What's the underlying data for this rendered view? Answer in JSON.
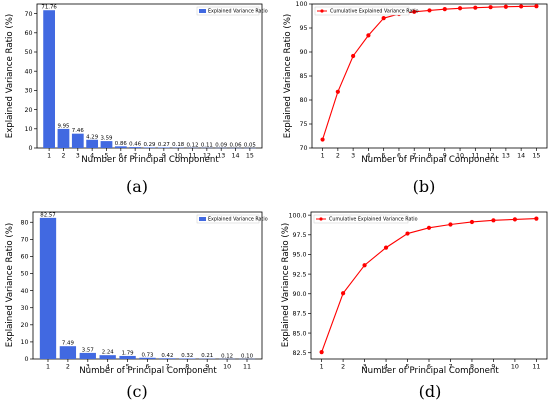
{
  "chart_data": [
    {
      "type": "bar",
      "caption": "(a)",
      "xlabel": "Number of Principal Component",
      "ylabel": "Explained Variance Ratio (%)",
      "legend": "Explained Variance Ratio",
      "legend_position": "top-right",
      "color": "#4169e1",
      "categories": [
        "1",
        "2",
        "3",
        "4",
        "5",
        "6",
        "7",
        "8",
        "9",
        "10",
        "11",
        "12",
        "13",
        "14",
        "15"
      ],
      "values": [
        71.76,
        9.95,
        7.46,
        4.29,
        3.59,
        0.86,
        0.46,
        0.29,
        0.27,
        0.18,
        0.12,
        0.11,
        0.09,
        0.06,
        0.05
      ],
      "labels": [
        "71.76",
        "9.95",
        "7.46",
        "4.29",
        "3.59",
        "0.86",
        "0.46",
        "0.29",
        "0.27",
        "0.18",
        "0.12",
        "0.11",
        "0.09",
        "0.06",
        "0.05"
      ],
      "ylim": [
        0,
        75
      ],
      "yticks": [
        "0",
        "10",
        "20",
        "30",
        "40",
        "50",
        "60",
        "70"
      ]
    },
    {
      "type": "line",
      "caption": "(b)",
      "xlabel": "Number of Principal Component",
      "ylabel": "Explained Variance Ratio (%)",
      "legend": "Cumulative Explained Variance Ratio",
      "legend_position": "top-left",
      "color": "#ff0000",
      "x": [
        1,
        2,
        3,
        4,
        5,
        6,
        7,
        8,
        9,
        10,
        11,
        12,
        13,
        14,
        15
      ],
      "y": [
        71.76,
        81.71,
        89.17,
        93.46,
        97.05,
        97.91,
        98.37,
        98.66,
        98.93,
        99.11,
        99.23,
        99.34,
        99.43,
        99.49,
        99.54
      ],
      "xticks": [
        "1",
        "2",
        "3",
        "4",
        "5",
        "6",
        "7",
        "8",
        "9",
        "10",
        "11",
        "12",
        "13",
        "14",
        "15"
      ],
      "ylim": [
        70,
        100
      ],
      "yticks": [
        "70",
        "75",
        "80",
        "85",
        "90",
        "95",
        "100"
      ]
    },
    {
      "type": "bar",
      "caption": "(c)",
      "xlabel": "Number of Principal Component",
      "ylabel": "Explained Variance Ratio (%)",
      "legend": "Explained Variance Ratio",
      "legend_position": "top-right",
      "color": "#4169e1",
      "categories": [
        "1",
        "2",
        "3",
        "4",
        "5",
        "6",
        "7",
        "8",
        "9",
        "10",
        "11"
      ],
      "values": [
        82.57,
        7.49,
        3.57,
        2.24,
        1.79,
        0.73,
        0.42,
        0.32,
        0.21,
        0.12,
        0.1
      ],
      "labels": [
        "82.57",
        "7.49",
        "3.57",
        "2.24",
        "1.79",
        "0.73",
        "0.42",
        "0.32",
        "0.21",
        "0.12",
        "0.10"
      ],
      "ylim": [
        0,
        86
      ],
      "yticks": [
        "0",
        "10",
        "20",
        "30",
        "40",
        "50",
        "60",
        "70",
        "80"
      ]
    },
    {
      "type": "line",
      "caption": "(d)",
      "xlabel": "Number of Principal Component",
      "ylabel": "Explained Variance Ratio (%)",
      "legend": "Cumulative Explained Variance Ratio",
      "legend_position": "top-left",
      "color": "#ff0000",
      "x": [
        1,
        2,
        3,
        4,
        5,
        6,
        7,
        8,
        9,
        10,
        11
      ],
      "y": [
        82.57,
        90.06,
        93.63,
        95.87,
        97.66,
        98.39,
        98.81,
        99.13,
        99.34,
        99.46,
        99.56
      ],
      "xticks": [
        "1",
        "2",
        "3",
        "4",
        "5",
        "6",
        "7",
        "8",
        "9",
        "10",
        "11"
      ],
      "ylim": [
        81.7,
        100.4
      ],
      "yticks": [
        "82.5",
        "85.0",
        "87.5",
        "90.0",
        "92.5",
        "95.0",
        "97.5",
        "100.0"
      ]
    }
  ]
}
